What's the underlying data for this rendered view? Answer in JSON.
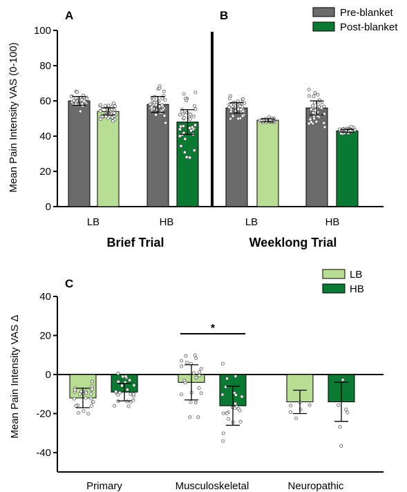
{
  "colors": {
    "pre": "#6b6b6b",
    "lb": "#b7de92",
    "hb": "#0a7a32",
    "point_fill": "#ffffff",
    "point_stroke": "#555555"
  },
  "chart_data": [
    {
      "panel": "A",
      "type": "bar",
      "group_title": "Brief Trial",
      "ylabel": "Mean Pain Intensity VAS (0-100)",
      "ylim": [
        0,
        100
      ],
      "yticks": [
        0,
        20,
        40,
        60,
        80,
        100
      ],
      "categories": [
        "LB",
        "HB"
      ],
      "series": [
        {
          "name": "Pre-blanket",
          "values": [
            60,
            58
          ],
          "err": [
            2.5,
            4.5
          ]
        },
        {
          "name": "Post-blanket",
          "values": [
            54,
            48
          ],
          "err": [
            2,
            7
          ]
        }
      ]
    },
    {
      "panel": "B",
      "type": "bar",
      "group_title": "Weeklong Trial",
      "ylim": [
        0,
        100
      ],
      "categories": [
        "LB",
        "HB"
      ],
      "series": [
        {
          "name": "Pre-blanket",
          "values": [
            56,
            56
          ],
          "err": [
            3,
            4
          ]
        },
        {
          "name": "Post-blanket",
          "values": [
            49,
            43
          ],
          "err": [
            0.8,
            0.8
          ]
        }
      ]
    },
    {
      "panel": "C",
      "type": "bar",
      "ylabel": "Mean Pain Intensity VAS Δ",
      "ylim": [
        -50,
        40
      ],
      "yticks": [
        -40,
        -20,
        0,
        20,
        40
      ],
      "categories": [
        "Primary",
        "Musculoskeletal",
        "Neuropathic"
      ],
      "series": [
        {
          "name": "LB",
          "values": [
            -12,
            -4,
            -14
          ],
          "err": [
            5,
            9,
            6
          ]
        },
        {
          "name": "HB",
          "values": [
            -9,
            -16,
            -14
          ],
          "err": [
            4.5,
            10,
            10
          ]
        }
      ],
      "annotations": [
        {
          "text": "*",
          "between": [
            "LB",
            "HB"
          ],
          "category": "Musculoskeletal"
        }
      ]
    }
  ],
  "legend_top": [
    "Pre-blanket",
    "Post-blanket"
  ],
  "legend_bottom": [
    "LB",
    "HB"
  ]
}
